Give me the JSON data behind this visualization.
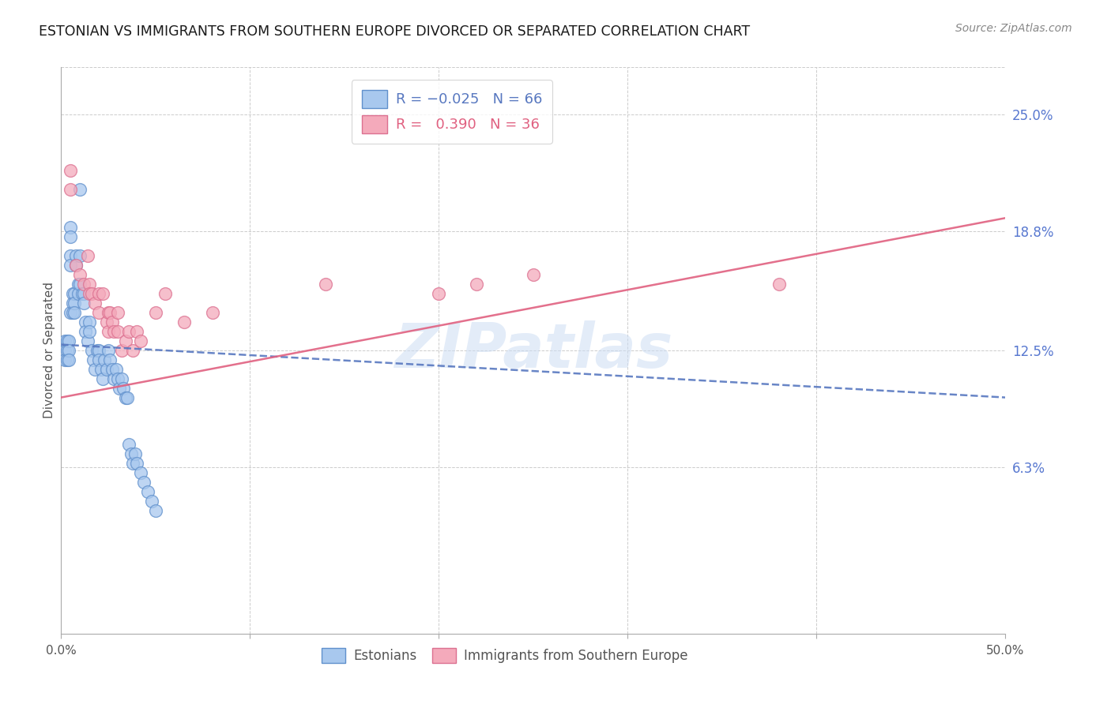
{
  "title": "ESTONIAN VS IMMIGRANTS FROM SOUTHERN EUROPE DIVORCED OR SEPARATED CORRELATION CHART",
  "source": "Source: ZipAtlas.com",
  "ylabel": "Divorced or Separated",
  "xlim": [
    0.0,
    0.5
  ],
  "ylim": [
    -0.025,
    0.275
  ],
  "yticks": [
    0.063,
    0.125,
    0.188,
    0.25
  ],
  "ytick_labels": [
    "6.3%",
    "12.5%",
    "18.8%",
    "25.0%"
  ],
  "xticks": [
    0.0,
    0.1,
    0.2,
    0.3,
    0.4,
    0.5
  ],
  "xtick_labels": [
    "0.0%",
    "",
    "",
    "",
    "",
    "50.0%"
  ],
  "estonians_x": [
    0.002,
    0.002,
    0.002,
    0.003,
    0.003,
    0.003,
    0.004,
    0.004,
    0.004,
    0.005,
    0.005,
    0.005,
    0.005,
    0.005,
    0.006,
    0.006,
    0.006,
    0.007,
    0.007,
    0.007,
    0.008,
    0.008,
    0.009,
    0.009,
    0.01,
    0.01,
    0.01,
    0.011,
    0.012,
    0.012,
    0.013,
    0.013,
    0.014,
    0.015,
    0.015,
    0.016,
    0.017,
    0.018,
    0.019,
    0.02,
    0.02,
    0.021,
    0.022,
    0.023,
    0.024,
    0.025,
    0.026,
    0.027,
    0.028,
    0.029,
    0.03,
    0.031,
    0.032,
    0.033,
    0.034,
    0.035,
    0.036,
    0.037,
    0.038,
    0.039,
    0.04,
    0.042,
    0.044,
    0.046,
    0.048,
    0.05
  ],
  "estonians_y": [
    0.125,
    0.13,
    0.12,
    0.13,
    0.125,
    0.12,
    0.13,
    0.125,
    0.12,
    0.19,
    0.185,
    0.175,
    0.17,
    0.145,
    0.155,
    0.15,
    0.145,
    0.155,
    0.15,
    0.145,
    0.175,
    0.17,
    0.16,
    0.155,
    0.21,
    0.175,
    0.16,
    0.155,
    0.155,
    0.15,
    0.14,
    0.135,
    0.13,
    0.14,
    0.135,
    0.125,
    0.12,
    0.115,
    0.125,
    0.125,
    0.12,
    0.115,
    0.11,
    0.12,
    0.115,
    0.125,
    0.12,
    0.115,
    0.11,
    0.115,
    0.11,
    0.105,
    0.11,
    0.105,
    0.1,
    0.1,
    0.075,
    0.07,
    0.065,
    0.07,
    0.065,
    0.06,
    0.055,
    0.05,
    0.045,
    0.04
  ],
  "immigrants_x": [
    0.005,
    0.005,
    0.008,
    0.01,
    0.012,
    0.014,
    0.015,
    0.015,
    0.016,
    0.018,
    0.02,
    0.02,
    0.022,
    0.024,
    0.025,
    0.025,
    0.026,
    0.027,
    0.028,
    0.03,
    0.03,
    0.032,
    0.034,
    0.036,
    0.038,
    0.04,
    0.042,
    0.05,
    0.055,
    0.065,
    0.08,
    0.14,
    0.2,
    0.25,
    0.38,
    0.22
  ],
  "immigrants_y": [
    0.22,
    0.21,
    0.17,
    0.165,
    0.16,
    0.175,
    0.16,
    0.155,
    0.155,
    0.15,
    0.155,
    0.145,
    0.155,
    0.14,
    0.145,
    0.135,
    0.145,
    0.14,
    0.135,
    0.145,
    0.135,
    0.125,
    0.13,
    0.135,
    0.125,
    0.135,
    0.13,
    0.145,
    0.155,
    0.14,
    0.145,
    0.16,
    0.155,
    0.165,
    0.16,
    0.16
  ],
  "blue_trend_x": [
    0.0,
    0.5
  ],
  "blue_trend_y": [
    0.128,
    0.1
  ],
  "pink_trend_x": [
    0.0,
    0.5
  ],
  "pink_trend_y": [
    0.1,
    0.195
  ],
  "watermark_text": "ZIPatlas",
  "dot_size": 130,
  "blue_face": "#a8c8ee",
  "blue_edge": "#6090cc",
  "pink_face": "#f4aabb",
  "pink_edge": "#dc7090",
  "blue_line": "#5878c0",
  "pink_line": "#e06080",
  "grid_color": "#cccccc",
  "right_tick_color": "#5878d0",
  "title_color": "#1a1a1a",
  "title_fontsize": 12.5,
  "source_fontsize": 10,
  "tick_fontsize": 11,
  "ylabel_fontsize": 11
}
